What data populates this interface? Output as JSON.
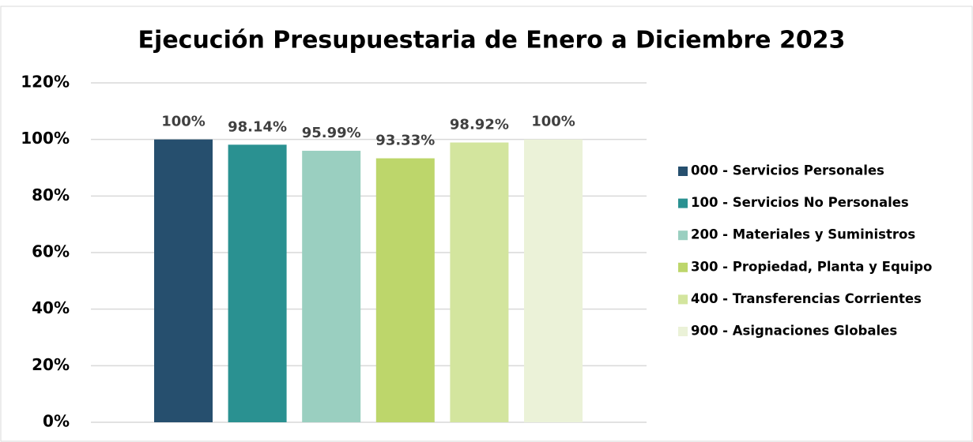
{
  "chart_data": {
    "type": "bar",
    "title": "Ejecución Presupuestaria de Enero a Diciembre 2023",
    "categories": [
      null
    ],
    "series": [
      {
        "name": "000 - Servicios Personales",
        "color": "#264f6e",
        "values": [
          100
        ],
        "value_labels": [
          "100%"
        ]
      },
      {
        "name": "100 - Servicios No Personales",
        "color": "#2a9191",
        "values": [
          98.14
        ],
        "value_labels": [
          "98.14%"
        ]
      },
      {
        "name": "200 - Materiales y Suministros",
        "color": "#9acfc0",
        "values": [
          95.99
        ],
        "value_labels": [
          "95.99%"
        ]
      },
      {
        "name": "300 - Propiedad, Planta y Equipo",
        "color": "#bdd66b",
        "values": [
          93.33
        ],
        "value_labels": [
          "93.33%"
        ]
      },
      {
        "name": "400 - Transferencias Corrientes",
        "color": "#d3e59e",
        "values": [
          98.92
        ],
        "value_labels": [
          "98.92%"
        ]
      },
      {
        "name": "900 - Asignaciones Globales",
        "color": "#ebf2d8",
        "values": [
          100
        ],
        "value_labels": [
          "100%"
        ]
      }
    ],
    "ylim": [
      0,
      120
    ],
    "yticks": [
      {
        "value": 0,
        "label": "0%"
      },
      {
        "value": 20,
        "label": "20%"
      },
      {
        "value": 40,
        "label": "40%"
      },
      {
        "value": 60,
        "label": "60%"
      },
      {
        "value": 80,
        "label": "80%"
      },
      {
        "value": 100,
        "label": "100%"
      },
      {
        "value": 120,
        "label": "120%"
      }
    ],
    "grid": true,
    "legend": "right"
  }
}
